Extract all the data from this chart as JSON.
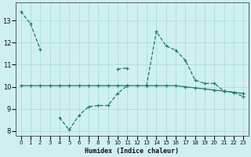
{
  "xlabel": "Humidex (Indice chaleur)",
  "x": [
    0,
    1,
    2,
    3,
    4,
    5,
    6,
    7,
    8,
    9,
    10,
    11,
    12,
    13,
    14,
    15,
    16,
    17,
    18,
    19,
    20,
    21,
    22,
    23
  ],
  "line1_dashed": [
    13.4,
    12.85,
    11.7,
    null,
    null,
    null,
    null,
    null,
    null,
    null,
    10.8,
    10.85,
    null,
    10.05,
    12.5,
    11.85,
    11.65,
    11.2,
    10.3,
    10.15,
    10.15,
    9.8,
    9.75,
    9.55
  ],
  "line2_solid": [
    10.05,
    10.05,
    10.05,
    10.05,
    10.05,
    10.05,
    10.05,
    10.05,
    10.05,
    10.05,
    10.05,
    10.05,
    10.05,
    10.05,
    10.05,
    10.05,
    10.05,
    10.0,
    9.95,
    9.9,
    9.85,
    9.8,
    9.75,
    9.7
  ],
  "line2b_dashed": [
    null,
    null,
    null,
    null,
    8.6,
    8.05,
    8.7,
    9.1,
    9.15,
    9.15,
    9.7,
    10.05,
    null,
    null,
    null,
    null,
    null,
    null,
    null,
    null,
    null,
    null,
    null,
    null
  ],
  "line_color": "#1a7a6e",
  "bg_color": "#cff0f0",
  "grid_color": "#a8d8d8",
  "xlim": [
    -0.5,
    23.5
  ],
  "ylim": [
    7.8,
    13.8
  ],
  "yticks": [
    8,
    9,
    10,
    11,
    12,
    13
  ],
  "xticks": [
    0,
    1,
    2,
    3,
    4,
    5,
    6,
    7,
    8,
    9,
    10,
    11,
    12,
    13,
    14,
    15,
    16,
    17,
    18,
    19,
    20,
    21,
    22,
    23
  ]
}
